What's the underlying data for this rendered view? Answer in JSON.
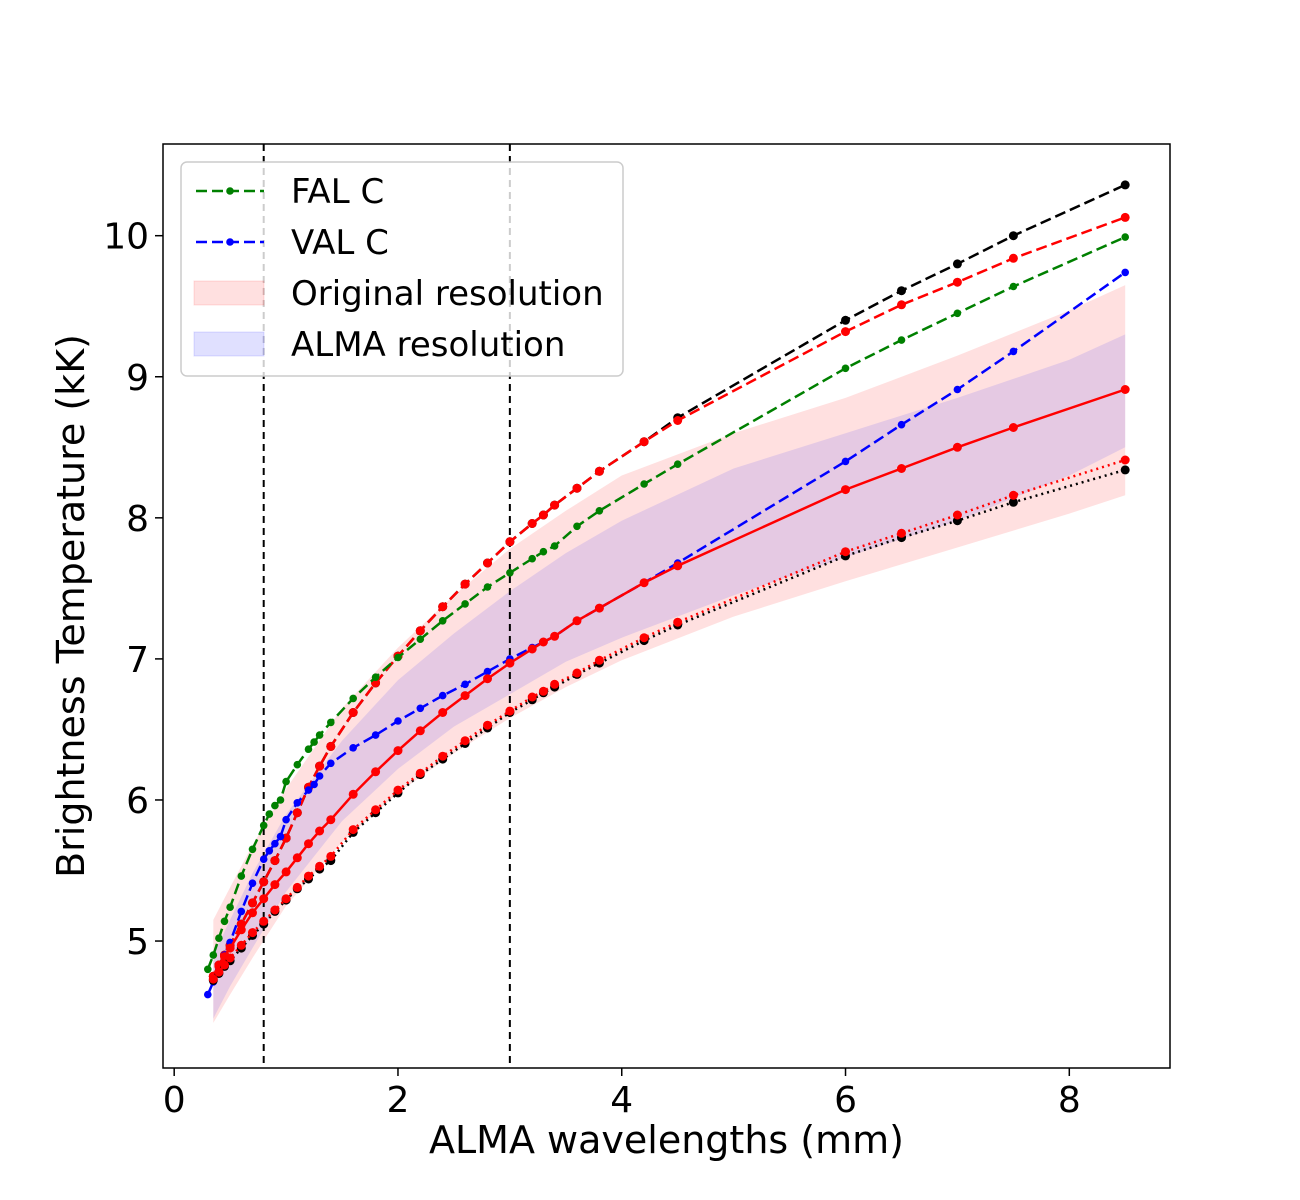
{
  "chart_data": {
    "type": "line",
    "title": "",
    "xlabel": "ALMA wavelengths (mm)",
    "ylabel": "Brightness Temperature (kK)",
    "xlim": [
      -0.1,
      8.9
    ],
    "ylim": [
      4.1,
      10.65
    ],
    "xticks": [
      0,
      2,
      4,
      6,
      8
    ],
    "yticks": [
      5,
      6,
      7,
      8,
      9,
      10
    ],
    "grid": false,
    "legend_position": "top-left",
    "vertical_lines": [
      0.8,
      3.0
    ],
    "legend": [
      {
        "label": "FAL C",
        "kind": "line",
        "color": "#008000",
        "dash": "dashed"
      },
      {
        "label": "VAL C",
        "kind": "line",
        "color": "#0000ff",
        "dash": "dashed"
      },
      {
        "label": "Original resolution",
        "kind": "band",
        "color": "#ff0000"
      },
      {
        "label": "ALMA resolution",
        "kind": "band",
        "color": "#0000ff"
      }
    ],
    "bands": [
      {
        "name": "Original resolution",
        "color": "#ff0000",
        "opacity": 0.12,
        "x": [
          0.35,
          0.5,
          0.7,
          1.0,
          1.5,
          2.0,
          2.5,
          3.0,
          3.5,
          4.0,
          5.0,
          6.0,
          7.0,
          8.0,
          8.5
        ],
        "lower": [
          4.42,
          4.62,
          4.88,
          5.25,
          5.7,
          6.05,
          6.33,
          6.58,
          6.8,
          6.99,
          7.3,
          7.55,
          7.79,
          8.03,
          8.16
        ],
        "upper": [
          5.15,
          5.38,
          5.68,
          6.08,
          6.65,
          7.08,
          7.45,
          7.78,
          8.05,
          8.3,
          8.6,
          8.85,
          9.15,
          9.47,
          9.65
        ]
      },
      {
        "name": "ALMA resolution",
        "color": "#0000ff",
        "opacity": 0.1,
        "x": [
          0.35,
          0.5,
          0.7,
          1.0,
          1.5,
          2.0,
          2.5,
          3.0,
          3.5,
          4.0,
          5.0,
          6.0,
          7.0,
          8.0,
          8.5
        ],
        "lower": [
          4.45,
          4.68,
          4.95,
          5.35,
          5.85,
          6.22,
          6.52,
          6.75,
          6.98,
          7.15,
          7.45,
          7.72,
          7.98,
          8.3,
          8.5
        ],
        "upper": [
          4.9,
          5.15,
          5.48,
          5.9,
          6.42,
          6.85,
          7.18,
          7.48,
          7.75,
          7.98,
          8.35,
          8.6,
          8.85,
          9.12,
          9.3
        ]
      }
    ],
    "series": [
      {
        "name": "black dashed",
        "color": "#000000",
        "dash": "dashed",
        "x": [
          0.35,
          0.4,
          0.45,
          0.5,
          0.6,
          0.7,
          0.8,
          0.9,
          1.0,
          1.1,
          1.2,
          1.3,
          1.4,
          1.6,
          1.8,
          2.0,
          2.2,
          2.4,
          2.6,
          2.8,
          3.0,
          3.2,
          3.3,
          3.4,
          3.6,
          3.8,
          4.2,
          4.5,
          6.0,
          6.5,
          7.0,
          7.5,
          8.5
        ],
        "values": [
          4.75,
          4.83,
          4.9,
          4.97,
          5.12,
          5.27,
          5.42,
          5.57,
          5.73,
          5.91,
          6.09,
          6.24,
          6.38,
          6.62,
          6.83,
          7.02,
          7.2,
          7.37,
          7.53,
          7.68,
          7.83,
          7.96,
          8.02,
          8.09,
          8.21,
          8.33,
          8.54,
          8.71,
          9.4,
          9.61,
          9.8,
          10.0,
          10.36
        ]
      },
      {
        "name": "red dashed",
        "color": "#ff0000",
        "dash": "dashed",
        "x": [
          0.35,
          0.4,
          0.45,
          0.5,
          0.6,
          0.7,
          0.8,
          0.9,
          1.0,
          1.1,
          1.2,
          1.3,
          1.4,
          1.6,
          1.8,
          2.0,
          2.2,
          2.4,
          2.6,
          2.8,
          3.0,
          3.2,
          3.3,
          3.4,
          3.6,
          3.8,
          4.2,
          4.5,
          6.0,
          6.5,
          7.0,
          7.5,
          8.5
        ],
        "values": [
          4.75,
          4.83,
          4.9,
          4.97,
          5.12,
          5.27,
          5.42,
          5.57,
          5.73,
          5.91,
          6.09,
          6.24,
          6.38,
          6.62,
          6.83,
          7.02,
          7.2,
          7.37,
          7.53,
          7.68,
          7.83,
          7.96,
          8.02,
          8.09,
          8.21,
          8.33,
          8.54,
          8.69,
          9.32,
          9.51,
          9.67,
          9.84,
          10.13
        ]
      },
      {
        "name": "FAL C",
        "color": "#008000",
        "dash": "dashed",
        "x": [
          0.3,
          0.35,
          0.4,
          0.45,
          0.5,
          0.6,
          0.7,
          0.8,
          0.85,
          0.9,
          0.95,
          1.0,
          1.1,
          1.2,
          1.25,
          1.3,
          1.4,
          1.6,
          1.8,
          2.0,
          2.2,
          2.4,
          2.6,
          2.8,
          3.0,
          3.2,
          3.3,
          3.4,
          3.6,
          3.8,
          4.2,
          4.5,
          6.0,
          6.5,
          7.0,
          7.5,
          8.5
        ],
        "values": [
          4.8,
          4.9,
          5.02,
          5.14,
          5.24,
          5.46,
          5.65,
          5.82,
          5.9,
          5.96,
          6.0,
          6.13,
          6.25,
          6.36,
          6.41,
          6.46,
          6.55,
          6.72,
          6.87,
          7.01,
          7.14,
          7.27,
          7.39,
          7.51,
          7.61,
          7.71,
          7.76,
          7.8,
          7.94,
          8.05,
          8.24,
          8.38,
          9.06,
          9.26,
          9.45,
          9.64,
          9.99
        ]
      },
      {
        "name": "VAL C",
        "color": "#0000ff",
        "dash": "dashed",
        "x": [
          0.3,
          0.35,
          0.4,
          0.45,
          0.5,
          0.6,
          0.7,
          0.8,
          0.85,
          0.9,
          0.95,
          1.0,
          1.1,
          1.2,
          1.25,
          1.3,
          1.4,
          1.6,
          1.8,
          2.0,
          2.2,
          2.4,
          2.6,
          2.8,
          3.0,
          3.2,
          3.3,
          3.4,
          3.6,
          3.8,
          4.2,
          4.5,
          6.0,
          6.5,
          7.0,
          7.5,
          8.5
        ],
        "values": [
          4.62,
          4.71,
          4.8,
          4.9,
          4.99,
          5.21,
          5.41,
          5.58,
          5.64,
          5.69,
          5.74,
          5.86,
          5.98,
          6.07,
          6.11,
          6.17,
          6.26,
          6.37,
          6.46,
          6.56,
          6.65,
          6.74,
          6.82,
          6.91,
          7.0,
          7.08,
          7.12,
          7.16,
          7.27,
          7.36,
          7.54,
          7.68,
          8.4,
          8.66,
          8.91,
          9.18,
          9.74
        ]
      },
      {
        "name": "red solid",
        "color": "#ff0000",
        "dash": "solid",
        "x": [
          0.35,
          0.4,
          0.45,
          0.5,
          0.6,
          0.7,
          0.8,
          0.9,
          1.0,
          1.1,
          1.2,
          1.3,
          1.4,
          1.6,
          1.8,
          2.0,
          2.2,
          2.4,
          2.6,
          2.8,
          3.0,
          3.2,
          3.3,
          3.4,
          3.6,
          3.8,
          4.2,
          4.5,
          6.0,
          6.5,
          7.0,
          7.5,
          8.5
        ],
        "values": [
          4.75,
          4.82,
          4.89,
          4.95,
          5.08,
          5.2,
          5.3,
          5.4,
          5.49,
          5.59,
          5.69,
          5.78,
          5.86,
          6.04,
          6.2,
          6.35,
          6.49,
          6.62,
          6.74,
          6.86,
          6.97,
          7.07,
          7.12,
          7.16,
          7.27,
          7.36,
          7.54,
          7.66,
          8.2,
          8.35,
          8.5,
          8.64,
          8.91
        ]
      },
      {
        "name": "black dotted",
        "color": "#000000",
        "dash": "dotted",
        "x": [
          0.35,
          0.4,
          0.45,
          0.5,
          0.6,
          0.7,
          0.8,
          0.9,
          1.0,
          1.1,
          1.2,
          1.3,
          1.4,
          1.6,
          1.8,
          2.0,
          2.2,
          2.4,
          2.6,
          2.8,
          3.0,
          3.2,
          3.3,
          3.4,
          3.6,
          3.8,
          4.2,
          4.5,
          6.0,
          6.5,
          7.0,
          7.5,
          8.5
        ],
        "values": [
          4.72,
          4.77,
          4.82,
          4.86,
          4.95,
          5.04,
          5.12,
          5.21,
          5.29,
          5.37,
          5.44,
          5.51,
          5.57,
          5.77,
          5.91,
          6.05,
          6.18,
          6.29,
          6.4,
          6.51,
          6.62,
          6.71,
          6.76,
          6.8,
          6.89,
          6.97,
          7.13,
          7.24,
          7.73,
          7.86,
          7.98,
          8.11,
          8.34
        ]
      },
      {
        "name": "red dotted",
        "color": "#ff0000",
        "dash": "dotted",
        "x": [
          0.35,
          0.4,
          0.45,
          0.5,
          0.6,
          0.7,
          0.8,
          0.9,
          1.0,
          1.1,
          1.2,
          1.3,
          1.4,
          1.6,
          1.8,
          2.0,
          2.2,
          2.4,
          2.6,
          2.8,
          3.0,
          3.2,
          3.3,
          3.4,
          3.6,
          3.8,
          4.2,
          4.5,
          6.0,
          6.5,
          7.0,
          7.5,
          8.5
        ],
        "values": [
          4.73,
          4.78,
          4.83,
          4.88,
          4.97,
          5.06,
          5.14,
          5.22,
          5.3,
          5.38,
          5.46,
          5.53,
          5.6,
          5.79,
          5.93,
          6.07,
          6.19,
          6.31,
          6.42,
          6.53,
          6.63,
          6.73,
          6.77,
          6.82,
          6.9,
          6.99,
          7.15,
          7.26,
          7.76,
          7.89,
          8.02,
          8.16,
          8.41
        ]
      }
    ]
  }
}
